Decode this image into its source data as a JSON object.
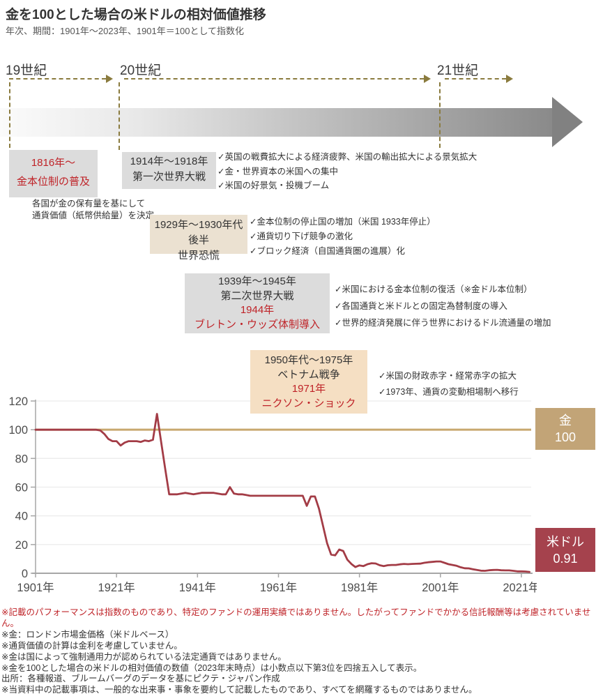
{
  "header": {
    "title": "金を100とした場合の米ドルの相対価値推移",
    "subtitle": "年次、期間：1901年～2023年、1901年＝100として指数化"
  },
  "timeline": {
    "centuries": [
      {
        "label": "19世紀"
      },
      {
        "label": "20世紀"
      },
      {
        "label": "21世紀"
      }
    ],
    "events": [
      {
        "lines": [
          "1816年～",
          "金本位制の普及"
        ],
        "note": [
          "各国が金の保有量を基にして",
          "通貨価値（紙幣供給量）を決定"
        ]
      },
      {
        "lines": [
          "1914年～1918年",
          "第一次世界大戦"
        ],
        "checks": [
          "✓英国の戦費拡大による経済疲弊、米国の輸出拡大による景気拡大",
          "✓金・世界資本の米国への集中",
          "✓米国の好景気・投機ブーム"
        ]
      },
      {
        "lines": [
          "1929年～1930年代後半",
          "世界恐慌"
        ],
        "checks": [
          "✓金本位制の停止国の増加（米国 1933年停止）",
          "✓通貨切り下げ競争の激化",
          "✓ブロック経済（自国通貨圏の進展）化"
        ]
      },
      {
        "lines": [
          "1939年～1945年",
          "第二次世界大戦",
          "1944年",
          "ブレトン・ウッズ体制導入"
        ],
        "checks": [
          "✓米国における金本位制の復活（※金ドル本位制）",
          "✓各国通貨と米ドルとの固定為替制度の導入",
          "✓世界的経済発展に伴う世界におけるドル流通量の増加"
        ]
      },
      {
        "lines": [
          "1950年代～1975年",
          "ベトナム戦争",
          "1971年",
          "ニクソン・ショック"
        ],
        "checks": [
          "✓米国の財政赤字・経常赤字の拡大",
          "✓1973年、通貨の変動相場制へ移行"
        ]
      }
    ]
  },
  "chart_data": {
    "type": "line",
    "title": "金を100とした場合の米ドルの相対価値推移",
    "xlim": [
      1901,
      2023
    ],
    "ylim": [
      0,
      120
    ],
    "grid": true,
    "y_ticks": [
      0,
      20,
      40,
      60,
      80,
      100,
      120
    ],
    "x_ticks": [
      {
        "year": 1901,
        "label": "1901年"
      },
      {
        "year": 1921,
        "label": "1921年"
      },
      {
        "year": 1941,
        "label": "1941年"
      },
      {
        "year": 1961,
        "label": "1961年"
      },
      {
        "year": 1981,
        "label": "1981年"
      },
      {
        "year": 2001,
        "label": "2001年"
      },
      {
        "year": 2021,
        "label": "2021年"
      }
    ],
    "series": [
      {
        "name": "金",
        "color": "#c8a86e",
        "constant": 100
      },
      {
        "name": "米ドル",
        "color": "#a33c46",
        "x_start": 1901,
        "x_step": 1,
        "values": [
          100,
          100,
          100,
          100,
          100,
          100,
          100,
          100,
          100,
          100,
          100,
          100,
          100,
          100,
          100,
          100,
          99.5,
          97,
          93.5,
          92,
          92,
          89,
          91,
          92,
          92,
          92,
          91.5,
          92.5,
          92,
          93,
          111,
          92,
          73,
          55,
          55,
          55,
          55.5,
          56,
          55.5,
          55,
          55.5,
          56,
          56,
          56,
          56,
          55.5,
          55,
          55,
          60,
          55.5,
          55,
          55,
          54.5,
          54,
          54,
          54,
          54,
          54,
          54,
          54,
          54,
          54,
          54,
          54,
          54,
          54,
          54,
          47,
          53.5,
          53.5,
          45,
          33,
          21,
          13,
          12.5,
          16.5,
          15.5,
          9.5,
          6.5,
          4.3,
          5.5,
          5,
          6.3,
          7,
          6.8,
          5.6,
          5,
          5.6,
          5.8,
          5.8,
          6.2,
          6.5,
          6.3,
          6.5,
          6.6,
          6.7,
          7.3,
          7.7,
          7.9,
          8.2,
          8.2,
          7.3,
          6.3,
          5.8,
          5.2,
          4.2,
          3.5,
          3.4,
          2.8,
          2.3,
          1.8,
          1.7,
          2.1,
          2.3,
          2.4,
          2.1,
          2.0,
          2.0,
          1.7,
          1.3,
          1.3,
          1.2,
          0.91
        ]
      }
    ]
  },
  "legend": {
    "gold": {
      "label": "金",
      "value": "100",
      "bg": "#c2a477"
    },
    "usd": {
      "label": "米ドル",
      "value": "0.91",
      "bg": "#a5424d"
    }
  },
  "footnotes": [
    "※記載のパフォーマンスは指数のものであり、特定のファンドの運用実績ではありません。したがってファンドでかかる信託報酬等は考慮されていません。",
    "※金：ロンドン市場金価格（米ドルベース）",
    "※通貨価値の計算は金利を考慮していません。",
    "※金は国によって強制通用力が認められている法定通貨ではありません。",
    "※金を100とした場合の米ドルの相対価値の数値（2023年末時点）は小数点以下第3位を四捨五入して表示。",
    "出所：各種報道、ブルームバーグのデータを基にピクテ・ジャパン作成",
    "※当資料中の記載事項は、一般的な出来事・事象を要約して記載したものであり、すべてを網羅するものではありません。"
  ],
  "colors": {
    "red_text": "#bf2328",
    "usd_line": "#a33c46",
    "gold_line": "#c8a86e",
    "legend_gold_bg": "#c2a477",
    "legend_usd_bg": "#a5424d",
    "timeline_dash": "#8a7b3e",
    "box_gray": "#dcdcdc",
    "box_beige": "#ebe1d1",
    "box_peach": "#f5dfc3"
  }
}
